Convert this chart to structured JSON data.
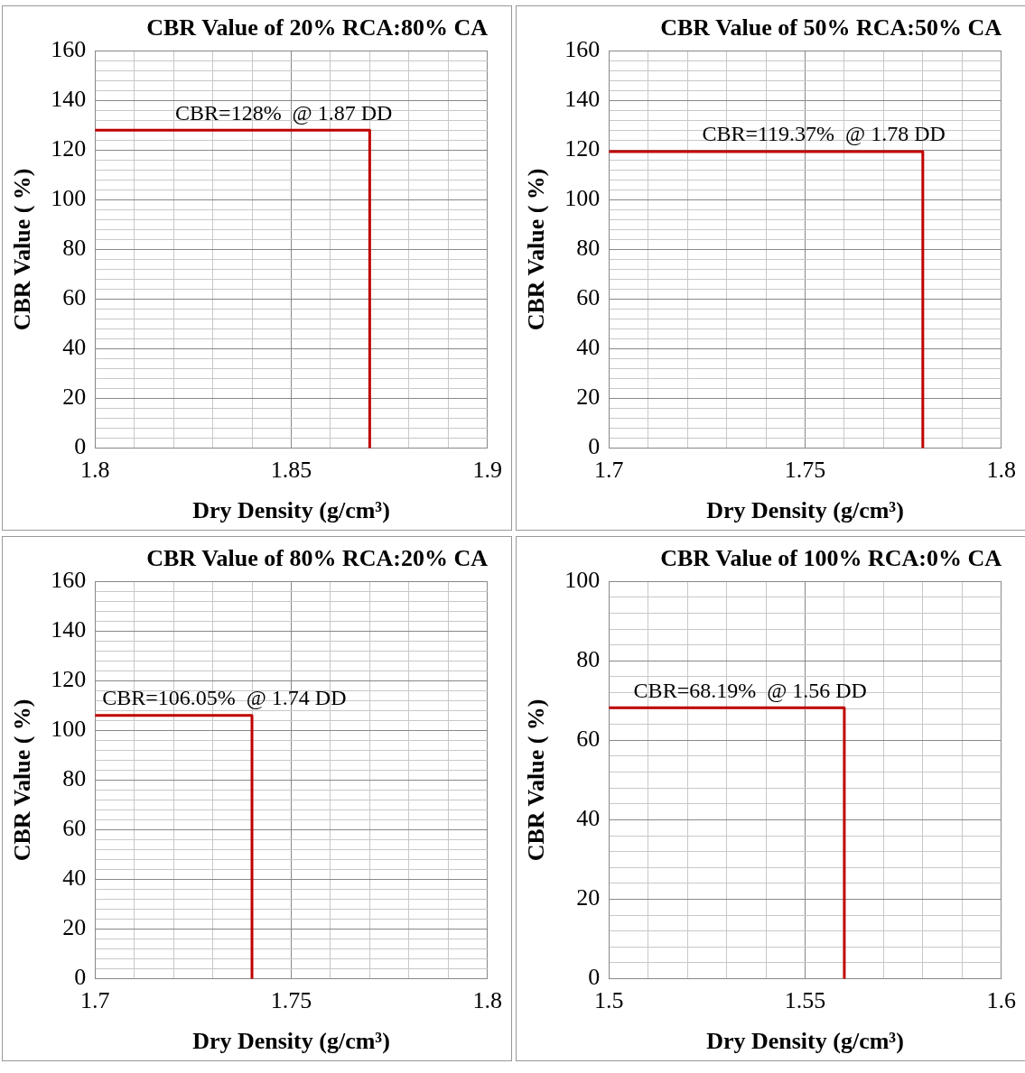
{
  "chart_data": [
    {
      "type": "line",
      "title": "CBR Value of 20% RCA:80% CA",
      "xlabel": "Dry Density (g/cm³)",
      "ylabel": "CBR Value ( %)",
      "xlim": [
        1.8,
        1.9
      ],
      "ylim": [
        0,
        160
      ],
      "xticks": [
        1.8,
        {
          "value": 1.81,
          "label": null
        },
        {
          "value": 1.82,
          "label": null
        },
        {
          "value": 1.83,
          "label": null
        },
        {
          "value": 1.84,
          "label": null
        },
        1.85,
        {
          "value": 1.86,
          "label": null
        },
        {
          "value": 1.87,
          "label": null
        },
        {
          "value": 1.88,
          "label": null
        },
        {
          "value": 1.89,
          "label": null
        },
        1.9
      ],
      "yticks": [
        0,
        {
          "value": 4,
          "label": null
        },
        {
          "value": 8,
          "label": null
        },
        {
          "value": 12,
          "label": null
        },
        {
          "value": 16,
          "label": null
        },
        20,
        {
          "value": 24,
          "label": null
        },
        {
          "value": 28,
          "label": null
        },
        {
          "value": 32,
          "label": null
        },
        {
          "value": 36,
          "label": null
        },
        40,
        {
          "value": 44,
          "label": null
        },
        {
          "value": 48,
          "label": null
        },
        {
          "value": 52,
          "label": null
        },
        {
          "value": 56,
          "label": null
        },
        60,
        {
          "value": 64,
          "label": null
        },
        {
          "value": 68,
          "label": null
        },
        {
          "value": 72,
          "label": null
        },
        {
          "value": 76,
          "label": null
        },
        80,
        {
          "value": 84,
          "label": null
        },
        {
          "value": 88,
          "label": null
        },
        {
          "value": 92,
          "label": null
        },
        {
          "value": 96,
          "label": null
        },
        100,
        {
          "value": 104,
          "label": null
        },
        {
          "value": 108,
          "label": null
        },
        {
          "value": 112,
          "label": null
        },
        {
          "value": 116,
          "label": null
        },
        120,
        {
          "value": 124,
          "label": null
        },
        {
          "value": 128,
          "label": null
        },
        {
          "value": 132,
          "label": null
        },
        {
          "value": 136,
          "label": null
        },
        140,
        {
          "value": 144,
          "label": null
        },
        {
          "value": 148,
          "label": null
        },
        {
          "value": 152,
          "label": null
        },
        {
          "value": 156,
          "label": null
        },
        160
      ],
      "grid": true,
      "legend": false,
      "marker": "none",
      "line_style": "solid",
      "series": [
        {
          "color": "#c00000",
          "x": [
            1.8,
            1.87,
            1.87
          ],
          "values": [
            128,
            128,
            0
          ]
        }
      ],
      "annotations": [
        {
          "text": "CBR=128%  @ 1.87 DD",
          "x": 1.87,
          "y": 128
        }
      ]
    },
    {
      "type": "line",
      "title": "CBR Value of 50% RCA:50% CA",
      "xlabel": "Dry Density (g/cm³)",
      "ylabel": "CBR Value ( %)",
      "xlim": [
        1.7,
        1.8
      ],
      "ylim": [
        0,
        160
      ],
      "xticks": [
        1.7,
        {
          "value": 1.71,
          "label": null
        },
        {
          "value": 1.72,
          "label": null
        },
        {
          "value": 1.73,
          "label": null
        },
        {
          "value": 1.74,
          "label": null
        },
        1.75,
        {
          "value": 1.76,
          "label": null
        },
        {
          "value": 1.77,
          "label": null
        },
        {
          "value": 1.78,
          "label": null
        },
        {
          "value": 1.79,
          "label": null
        },
        1.8
      ],
      "yticks": [
        0,
        {
          "value": 4,
          "label": null
        },
        {
          "value": 8,
          "label": null
        },
        {
          "value": 12,
          "label": null
        },
        {
          "value": 16,
          "label": null
        },
        20,
        {
          "value": 24,
          "label": null
        },
        {
          "value": 28,
          "label": null
        },
        {
          "value": 32,
          "label": null
        },
        {
          "value": 36,
          "label": null
        },
        40,
        {
          "value": 44,
          "label": null
        },
        {
          "value": 48,
          "label": null
        },
        {
          "value": 52,
          "label": null
        },
        {
          "value": 56,
          "label": null
        },
        60,
        {
          "value": 64,
          "label": null
        },
        {
          "value": 68,
          "label": null
        },
        {
          "value": 72,
          "label": null
        },
        {
          "value": 76,
          "label": null
        },
        80,
        {
          "value": 84,
          "label": null
        },
        {
          "value": 88,
          "label": null
        },
        {
          "value": 92,
          "label": null
        },
        {
          "value": 96,
          "label": null
        },
        100,
        {
          "value": 104,
          "label": null
        },
        {
          "value": 108,
          "label": null
        },
        {
          "value": 112,
          "label": null
        },
        {
          "value": 116,
          "label": null
        },
        120,
        {
          "value": 124,
          "label": null
        },
        {
          "value": 128,
          "label": null
        },
        {
          "value": 132,
          "label": null
        },
        {
          "value": 136,
          "label": null
        },
        140,
        {
          "value": 144,
          "label": null
        },
        {
          "value": 148,
          "label": null
        },
        {
          "value": 152,
          "label": null
        },
        {
          "value": 156,
          "label": null
        },
        160
      ],
      "grid": true,
      "legend": false,
      "marker": "none",
      "line_style": "solid",
      "series": [
        {
          "color": "#c00000",
          "x": [
            1.7,
            1.78,
            1.78
          ],
          "values": [
            119.37,
            119.37,
            0
          ]
        }
      ],
      "annotations": [
        {
          "text": "CBR=119.37%  @ 1.78 DD",
          "x": 1.78,
          "y": 119.37
        }
      ]
    },
    {
      "type": "line",
      "title": "CBR Value of 80% RCA:20% CA",
      "xlabel": "Dry Density (g/cm³)",
      "ylabel": "CBR Value ( %)",
      "xlim": [
        1.7,
        1.8
      ],
      "ylim": [
        0,
        160
      ],
      "xticks": [
        1.7,
        {
          "value": 1.71,
          "label": null
        },
        {
          "value": 1.72,
          "label": null
        },
        {
          "value": 1.73,
          "label": null
        },
        {
          "value": 1.74,
          "label": null
        },
        1.75,
        {
          "value": 1.76,
          "label": null
        },
        {
          "value": 1.77,
          "label": null
        },
        {
          "value": 1.78,
          "label": null
        },
        {
          "value": 1.79,
          "label": null
        },
        1.8
      ],
      "yticks": [
        0,
        {
          "value": 4,
          "label": null
        },
        {
          "value": 8,
          "label": null
        },
        {
          "value": 12,
          "label": null
        },
        {
          "value": 16,
          "label": null
        },
        20,
        {
          "value": 24,
          "label": null
        },
        {
          "value": 28,
          "label": null
        },
        {
          "value": 32,
          "label": null
        },
        {
          "value": 36,
          "label": null
        },
        40,
        {
          "value": 44,
          "label": null
        },
        {
          "value": 48,
          "label": null
        },
        {
          "value": 52,
          "label": null
        },
        {
          "value": 56,
          "label": null
        },
        60,
        {
          "value": 64,
          "label": null
        },
        {
          "value": 68,
          "label": null
        },
        {
          "value": 72,
          "label": null
        },
        {
          "value": 76,
          "label": null
        },
        80,
        {
          "value": 84,
          "label": null
        },
        {
          "value": 88,
          "label": null
        },
        {
          "value": 92,
          "label": null
        },
        {
          "value": 96,
          "label": null
        },
        100,
        {
          "value": 104,
          "label": null
        },
        {
          "value": 108,
          "label": null
        },
        {
          "value": 112,
          "label": null
        },
        {
          "value": 116,
          "label": null
        },
        120,
        {
          "value": 124,
          "label": null
        },
        {
          "value": 128,
          "label": null
        },
        {
          "value": 132,
          "label": null
        },
        {
          "value": 136,
          "label": null
        },
        140,
        {
          "value": 144,
          "label": null
        },
        {
          "value": 148,
          "label": null
        },
        {
          "value": 152,
          "label": null
        },
        {
          "value": 156,
          "label": null
        },
        160
      ],
      "grid": true,
      "legend": false,
      "marker": "none",
      "line_style": "solid",
      "series": [
        {
          "color": "#c00000",
          "x": [
            1.7,
            1.74,
            1.74
          ],
          "values": [
            106.05,
            106.05,
            0
          ]
        }
      ],
      "annotations": [
        {
          "text": "CBR=106.05%  @ 1.74 DD",
          "x": 1.74,
          "y": 106.05
        }
      ]
    },
    {
      "type": "line",
      "title": "CBR Value of 100% RCA:0% CA",
      "xlabel": "Dry Density (g/cm³)",
      "ylabel": "CBR Value ( %)",
      "xlim": [
        1.5,
        1.6
      ],
      "ylim": [
        0,
        100
      ],
      "xticks": [
        1.5,
        {
          "value": 1.51,
          "label": null
        },
        {
          "value": 1.52,
          "label": null
        },
        {
          "value": 1.53,
          "label": null
        },
        {
          "value": 1.54,
          "label": null
        },
        1.55,
        {
          "value": 1.56,
          "label": null
        },
        {
          "value": 1.57,
          "label": null
        },
        {
          "value": 1.58,
          "label": null
        },
        {
          "value": 1.59,
          "label": null
        },
        1.6
      ],
      "yticks": [
        0,
        {
          "value": 4,
          "label": null
        },
        {
          "value": 8,
          "label": null
        },
        {
          "value": 12,
          "label": null
        },
        {
          "value": 16,
          "label": null
        },
        20,
        {
          "value": 24,
          "label": null
        },
        {
          "value": 28,
          "label": null
        },
        {
          "value": 32,
          "label": null
        },
        {
          "value": 36,
          "label": null
        },
        40,
        {
          "value": 44,
          "label": null
        },
        {
          "value": 48,
          "label": null
        },
        {
          "value": 52,
          "label": null
        },
        {
          "value": 56,
          "label": null
        },
        60,
        {
          "value": 64,
          "label": null
        },
        {
          "value": 68,
          "label": null
        },
        {
          "value": 72,
          "label": null
        },
        {
          "value": 76,
          "label": null
        },
        80,
        {
          "value": 84,
          "label": null
        },
        {
          "value": 88,
          "label": null
        },
        {
          "value": 92,
          "label": null
        },
        {
          "value": 96,
          "label": null
        },
        100
      ],
      "grid": true,
      "legend": false,
      "marker": "none",
      "line_style": "solid",
      "series": [
        {
          "color": "#c00000",
          "x": [
            1.5,
            1.56,
            1.56
          ],
          "values": [
            68.19,
            68.19,
            0
          ]
        }
      ],
      "annotations": [
        {
          "text": "CBR=68.19%  @ 1.56 DD",
          "x": 1.56,
          "y": 68.19
        }
      ]
    }
  ]
}
